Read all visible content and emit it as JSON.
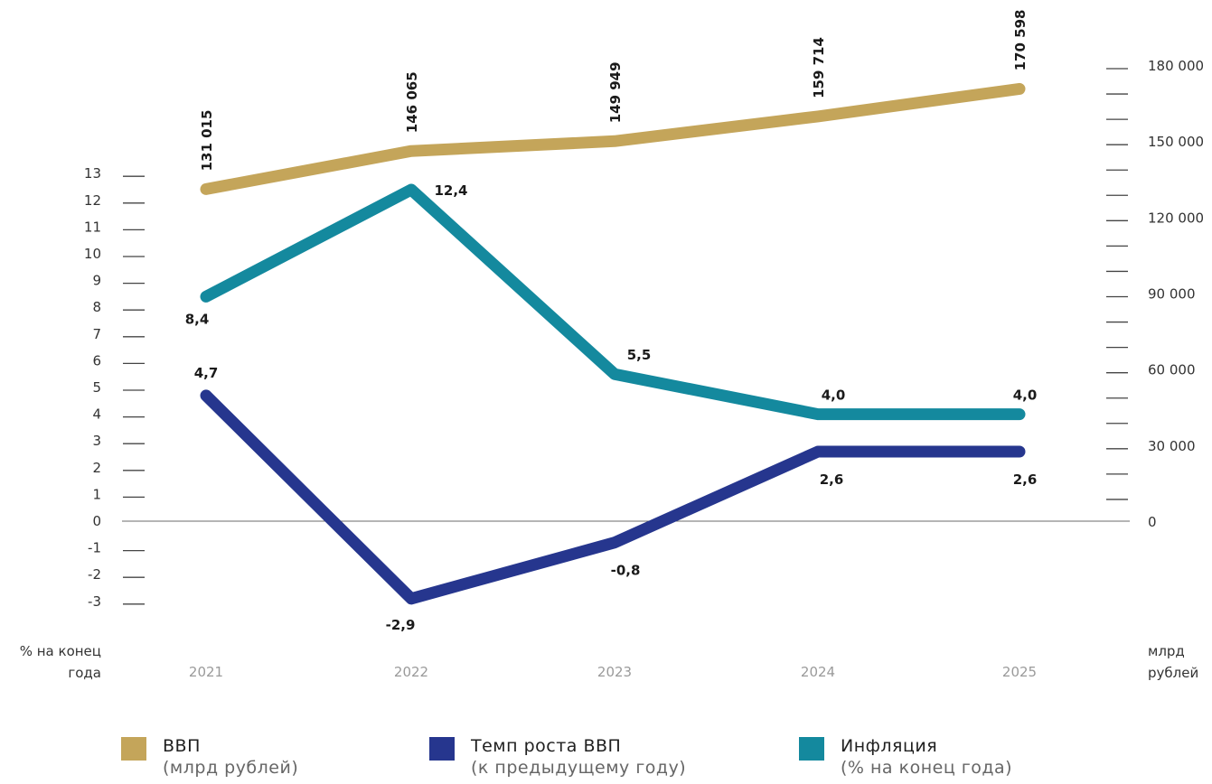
{
  "chart_data": {
    "type": "line",
    "categories": [
      "2021",
      "2022",
      "2023",
      "2024",
      "2025"
    ],
    "series": [
      {
        "name": "ВВП",
        "name_sub": "(млрд рублей)",
        "axis": "right",
        "color": "#C4A55A",
        "values": [
          131015,
          146065,
          149949,
          159714,
          170598
        ],
        "labels": [
          "131 015",
          "146 065",
          "149 949",
          "159 714",
          "170 598"
        ]
      },
      {
        "name": "Темп роста ВВП",
        "name_sub": "(к предыдущему году)",
        "axis": "left",
        "color": "#26368E",
        "values": [
          4.7,
          -2.9,
          -0.8,
          2.6,
          2.6
        ],
        "labels": [
          "4,7",
          "-2,9",
          "-0,8",
          "2,6",
          "2,6"
        ]
      },
      {
        "name": "Инфляция",
        "name_sub": "(% на конец года)",
        "axis": "left",
        "color": "#14899E",
        "values": [
          8.4,
          12.4,
          5.5,
          4.0,
          4.0
        ],
        "labels": [
          "8,4",
          "12,4",
          "5,5",
          "4,0",
          "4,0"
        ]
      }
    ],
    "left_axis": {
      "ylim": [
        -3,
        13
      ],
      "ticks": [
        "13",
        "12",
        "11",
        "10",
        "9",
        "8",
        "7",
        "6",
        "5",
        "4",
        "3",
        "2",
        "1",
        "0",
        "-1",
        "-2",
        "-3"
      ],
      "unit_line1": "% на конец",
      "unit_line2": "года"
    },
    "right_axis": {
      "ylim": [
        0,
        180000
      ],
      "ticks": [
        "180 000",
        "150 000",
        "120 000",
        "90 000",
        "60 000",
        "30 000",
        "0"
      ],
      "unit_line1": "млрд",
      "unit_line2": "рублей"
    },
    "legend_position": "bottom",
    "grid": false
  }
}
